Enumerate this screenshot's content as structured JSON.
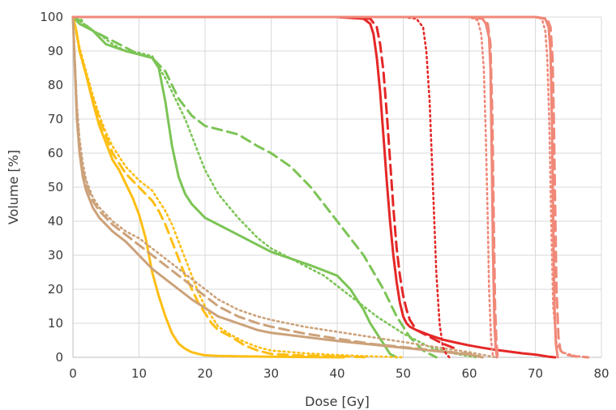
{
  "chart_data": {
    "type": "line",
    "title": "",
    "xlabel": "Dose [Gy]",
    "ylabel": "Volume [%]",
    "xlim": [
      0,
      80
    ],
    "ylim": [
      0,
      100
    ],
    "xticks": [
      0,
      10,
      20,
      30,
      40,
      50,
      60,
      70,
      80
    ],
    "yticks": [
      0,
      10,
      20,
      30,
      40,
      50,
      60,
      70,
      80,
      90,
      100
    ],
    "grid": true,
    "legend": "none",
    "colors": {
      "green": "#7cc456",
      "yellow": "#fdbe14",
      "tan": "#cca27a",
      "red": "#e52727",
      "salmon": "#f08878"
    },
    "series": [
      {
        "color": "#7cc456",
        "style": "solid",
        "x": [
          0,
          1,
          3,
          5,
          8,
          10,
          12,
          13,
          14,
          15,
          16,
          17,
          18,
          20,
          22,
          25,
          28,
          30,
          33,
          36,
          38,
          40,
          41,
          42,
          43,
          44,
          45,
          46,
          47,
          48,
          49
        ],
        "y": [
          100,
          98,
          96,
          92,
          90,
          89,
          88,
          85,
          75,
          62,
          53,
          48,
          45,
          41,
          39,
          36,
          33,
          31,
          29,
          27,
          25.5,
          24,
          22,
          20,
          17,
          14,
          10,
          7,
          4,
          1,
          0
        ]
      },
      {
        "color": "#7cc456",
        "style": "dashed",
        "x": [
          0,
          1,
          3,
          5,
          8,
          10,
          12,
          14,
          16,
          18,
          20,
          22,
          25,
          28,
          30,
          33,
          36,
          40,
          44,
          47,
          49,
          51,
          53,
          55
        ],
        "y": [
          100,
          99,
          96,
          94,
          91,
          89,
          88,
          84,
          76,
          71,
          68,
          67,
          65.5,
          62,
          60,
          56,
          50,
          40,
          30,
          20,
          12,
          6,
          2,
          0
        ]
      },
      {
        "color": "#7cc456",
        "style": "dotted",
        "x": [
          0,
          1,
          2,
          4,
          6,
          8,
          10,
          12,
          14,
          16,
          17,
          18,
          19,
          20,
          22,
          25,
          28,
          30,
          34,
          38,
          42,
          46,
          50,
          54,
          58,
          61
        ],
        "y": [
          100,
          100,
          97,
          95,
          92,
          90,
          89.5,
          88.5,
          82,
          74,
          70,
          65,
          60,
          55,
          48,
          41,
          35,
          32,
          28,
          24,
          18,
          12,
          7,
          3,
          1,
          0
        ]
      },
      {
        "color": "#fdbe14",
        "style": "solid",
        "x": [
          0,
          0.5,
          1,
          2,
          3,
          4,
          5,
          6,
          7,
          8,
          9,
          10,
          11,
          12,
          13,
          14,
          15,
          16,
          17,
          18,
          19,
          20,
          22,
          25,
          30,
          35,
          41
        ],
        "y": [
          100,
          96,
          90,
          83,
          75,
          68,
          63,
          58,
          55,
          51,
          47,
          42,
          35,
          25,
          18,
          12,
          7,
          4,
          2.5,
          1.5,
          1,
          0.6,
          0.4,
          0.3,
          0.2,
          0.1,
          0
        ]
      },
      {
        "color": "#fdbe14",
        "style": "dashed",
        "x": [
          0,
          0.5,
          1,
          2,
          3,
          4,
          5,
          6,
          8,
          10,
          12,
          13,
          14,
          15,
          16,
          17,
          18,
          19,
          20,
          21,
          22,
          24,
          26,
          28,
          30,
          35,
          40,
          45
        ],
        "y": [
          100,
          96,
          90,
          83,
          76,
          70,
          65,
          60,
          54,
          50,
          46,
          43,
          39,
          34,
          29,
          24,
          20,
          16,
          13,
          10,
          8,
          6,
          3.5,
          2,
          1,
          0.5,
          0.3,
          0
        ]
      },
      {
        "color": "#fdbe14",
        "style": "dotted",
        "x": [
          0,
          0.5,
          1,
          2,
          3,
          4,
          5,
          6,
          8,
          10,
          12,
          13,
          14,
          15,
          16,
          17,
          18,
          19,
          20,
          21,
          22,
          24,
          26,
          28,
          30,
          35,
          40,
          45,
          50
        ],
        "y": [
          100,
          96,
          91,
          84,
          77,
          71,
          66,
          62,
          56,
          52,
          49,
          46,
          43,
          39,
          34,
          29,
          24,
          19,
          15,
          12,
          9,
          6.5,
          4.5,
          3,
          2,
          1.2,
          0.7,
          0.3,
          0
        ]
      },
      {
        "color": "#cca27a",
        "style": "solid",
        "x": [
          0,
          0.3,
          0.6,
          1,
          1.5,
          2,
          3,
          4,
          5,
          6,
          8,
          10,
          12,
          14,
          16,
          18,
          20,
          22,
          25,
          28,
          30,
          35,
          40,
          45,
          50,
          55,
          60,
          62
        ],
        "y": [
          100,
          85,
          70,
          60,
          53,
          49,
          44,
          41,
          39,
          37,
          34,
          30,
          26,
          23,
          20,
          17,
          14.5,
          12,
          10,
          8,
          7.2,
          6,
          4.8,
          3.8,
          2.8,
          1.8,
          0.8,
          0
        ]
      },
      {
        "color": "#cca27a",
        "style": "dashed",
        "x": [
          0,
          0.3,
          0.6,
          1,
          1.5,
          2,
          3,
          4,
          5,
          6,
          8,
          10,
          12,
          14,
          16,
          18,
          20,
          22,
          25,
          28,
          30,
          35,
          40,
          45,
          50,
          55,
          60,
          62
        ],
        "y": [
          100,
          86,
          72,
          62,
          55,
          51,
          46,
          43,
          41,
          39,
          36,
          33,
          30,
          27,
          24,
          21,
          18,
          15,
          12,
          10,
          9,
          7,
          5.5,
          4,
          3,
          2,
          1,
          0
        ]
      },
      {
        "color": "#cca27a",
        "style": "dotted",
        "x": [
          0,
          0.3,
          0.6,
          1,
          1.5,
          2,
          3,
          4,
          5,
          6,
          8,
          10,
          12,
          14,
          16,
          18,
          20,
          22,
          25,
          28,
          30,
          35,
          40,
          45,
          50,
          55,
          60,
          64
        ],
        "y": [
          100,
          87,
          74,
          64,
          57,
          52,
          47,
          44,
          42,
          40,
          37,
          35,
          32,
          29,
          26,
          23,
          20,
          17,
          14,
          12,
          11,
          9,
          7.5,
          6,
          4.5,
          3,
          1.5,
          0
        ]
      },
      {
        "color": "#e52727",
        "style": "solid",
        "x": [
          0,
          30,
          40,
          44,
          45,
          45.5,
          46,
          46.5,
          47,
          47.5,
          48,
          48.5,
          49,
          49.5,
          50,
          50.5,
          51,
          52,
          54,
          56,
          58,
          60,
          62,
          64,
          66,
          68,
          70,
          71,
          72,
          73
        ],
        "y": [
          100,
          100,
          100,
          99.5,
          98,
          95,
          88,
          78,
          65,
          52,
          40,
          30,
          22,
          16,
          12,
          10,
          9,
          8,
          6.5,
          5.2,
          4.3,
          3.5,
          2.8,
          2.2,
          1.7,
          1.2,
          0.8,
          0.5,
          0.2,
          0
        ]
      },
      {
        "color": "#e52727",
        "style": "dashed",
        "x": [
          0,
          40,
          45,
          46,
          46.5,
          47,
          47.5,
          48,
          48.5,
          49,
          49.5,
          50,
          50.5,
          51,
          51.5,
          52,
          54,
          56,
          58
        ],
        "y": [
          100,
          100,
          99.5,
          97,
          92,
          84,
          72,
          58,
          44,
          32,
          24,
          18,
          14,
          11,
          9.5,
          8,
          6,
          4,
          2.5
        ]
      },
      {
        "color": "#e52727",
        "style": "dotted",
        "x": [
          0,
          50,
          52,
          53,
          53.5,
          54,
          54.5,
          55,
          55.5,
          56,
          56.5,
          57
        ],
        "y": [
          100,
          100,
          99.5,
          97,
          90,
          75,
          50,
          25,
          10,
          3,
          1,
          0
        ]
      },
      {
        "color": "#f08878",
        "style": "solid",
        "x": [
          0,
          55,
          60,
          62,
          62.5,
          63,
          63.2,
          63.4,
          63.6,
          63.8,
          64,
          64.2
        ],
        "y": [
          100,
          100,
          100,
          99.5,
          98,
          94,
          85,
          60,
          30,
          10,
          3,
          0
        ]
      },
      {
        "color": "#f08878",
        "style": "dashed",
        "x": [
          0,
          55,
          60,
          62,
          62.8,
          63.2,
          63.5,
          63.7,
          63.9,
          64.1,
          64.3
        ],
        "y": [
          100,
          100,
          100,
          99.5,
          98,
          92,
          70,
          40,
          15,
          5,
          0
        ]
      },
      {
        "color": "#f08878",
        "style": "dotted",
        "x": [
          0,
          55,
          60,
          61.3,
          61.8,
          62.2,
          62.5,
          62.8,
          63,
          63.3,
          63.6
        ],
        "y": [
          100,
          100,
          100,
          99,
          95,
          85,
          65,
          40,
          20,
          5,
          0
        ]
      },
      {
        "color": "#f08878",
        "style": "solid",
        "x": [
          0,
          60,
          70,
          71.5,
          72,
          72.3,
          72.5,
          72.7,
          72.9,
          73.1,
          73.4
        ],
        "y": [
          100,
          100,
          100,
          99.5,
          97,
          90,
          70,
          40,
          15,
          4,
          0
        ]
      },
      {
        "color": "#f08878",
        "style": "dashed",
        "x": [
          0,
          60,
          70,
          71.8,
          72.3,
          72.6,
          72.8,
          73,
          73.2,
          73.5,
          73.8,
          74.5,
          76,
          78
        ],
        "y": [
          100,
          100,
          100,
          99.5,
          97,
          88,
          70,
          45,
          20,
          6,
          2,
          0.8,
          0.3,
          0
        ]
      },
      {
        "color": "#f08878",
        "style": "dotted",
        "x": [
          0,
          60,
          70,
          71,
          71.5,
          71.8,
          72.1,
          72.4,
          72.7,
          73.2,
          74,
          76,
          78
        ],
        "y": [
          100,
          100,
          100,
          99.5,
          96,
          88,
          70,
          40,
          15,
          4,
          1.5,
          0.4,
          0
        ]
      }
    ]
  }
}
